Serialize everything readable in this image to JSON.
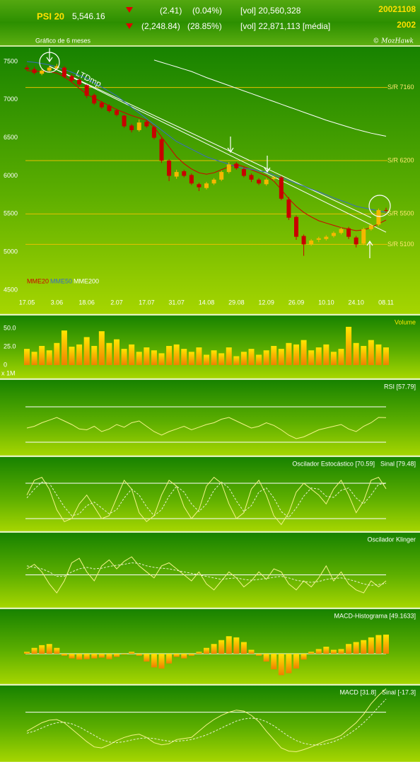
{
  "header": {
    "symbol": "PSI 20",
    "last": "5,546.16",
    "change_day": "(2.41)",
    "pct_day": "(0.04%)",
    "vol_day": "[vol] 20,560,328",
    "change_period": "(2,248.84)",
    "pct_period": "(28.85%)",
    "vol_avg": "[vol] 22,871,113 [média]",
    "date": "20021108",
    "year": "2002",
    "copyright": "© MozHawk",
    "period": "Gráfico de 6 meses"
  },
  "chart_data": [
    {
      "type": "candlestick",
      "categories": [
        "17.05",
        null,
        null,
        null,
        "3.06",
        null,
        null,
        null,
        "18.06",
        null,
        null,
        null,
        "2.07",
        null,
        null,
        null,
        "17.07",
        null,
        null,
        null,
        "31.07",
        null,
        null,
        null,
        "14.08",
        null,
        null,
        null,
        "29.08",
        null,
        null,
        null,
        "12.09",
        null,
        null,
        null,
        "26.09",
        null,
        null,
        null,
        "10.10",
        null,
        null,
        null,
        "24.10",
        null,
        null,
        null,
        "08.11"
      ],
      "open": [
        7420,
        7400,
        7340,
        7380,
        7410,
        7420,
        7310,
        7260,
        7190,
        7060,
        6960,
        6920,
        6860,
        6790,
        6660,
        6600,
        6710,
        6640,
        6480,
        6200,
        5990,
        6060,
        6010,
        5890,
        5840,
        5900,
        5950,
        6050,
        6160,
        6090,
        6010,
        5950,
        5890,
        5960,
        5980,
        5690,
        5460,
        5210,
        5100,
        5160,
        5170,
        5210,
        5250,
        5310,
        5190,
        5110,
        5300,
        5360,
        5550
      ],
      "high": [
        7450,
        7430,
        7400,
        7440,
        7470,
        7440,
        7330,
        7280,
        7200,
        7080,
        6980,
        6940,
        6880,
        6800,
        6680,
        6740,
        6730,
        6660,
        6500,
        6220,
        6080,
        6080,
        6030,
        5910,
        5920,
        5970,
        6070,
        6180,
        6180,
        6110,
        6030,
        5970,
        5970,
        6000,
        6000,
        5720,
        5480,
        5230,
        5170,
        5200,
        5220,
        5270,
        5320,
        5330,
        5210,
        5320,
        5370,
        5570,
        5580
      ],
      "low": [
        7380,
        7330,
        7320,
        7360,
        7390,
        7280,
        7230,
        7180,
        7020,
        6930,
        6880,
        6830,
        6780,
        6630,
        6570,
        6580,
        6630,
        6480,
        6170,
        5930,
        5960,
        5980,
        5880,
        5800,
        5820,
        5880,
        5930,
        6030,
        6080,
        5980,
        5920,
        5880,
        5870,
        5940,
        5680,
        5420,
        5160,
        4950,
        5080,
        5130,
        5150,
        5190,
        5230,
        5170,
        5060,
        5090,
        5280,
        5340,
        5520
      ],
      "close": [
        7400,
        7350,
        7380,
        7420,
        7440,
        7300,
        7250,
        7200,
        7050,
        6950,
        6900,
        6850,
        6800,
        6650,
        6600,
        6700,
        6650,
        6500,
        6200,
        6000,
        6050,
        6000,
        5900,
        5850,
        5900,
        5950,
        6050,
        6150,
        6100,
        6000,
        5950,
        5900,
        5950,
        5980,
        5700,
        5450,
        5200,
        5100,
        5150,
        5180,
        5200,
        5250,
        5300,
        5200,
        5100,
        5300,
        5350,
        5550,
        5546
      ],
      "up_color": "#f5b800",
      "down_color": "#c80000",
      "ylim": [
        4500,
        7500
      ],
      "yticks": [
        4500,
        5000,
        5500,
        6000,
        6500,
        7000,
        7500
      ],
      "grid": false,
      "overlays": [
        {
          "name": "MME20",
          "color": "#d00000",
          "values": [
            7380,
            7375,
            7370,
            7365,
            7350,
            7300,
            7230,
            7150,
            7070,
            7020,
            6970,
            6920,
            6870,
            6830,
            6790,
            6760,
            6730,
            6640,
            6510,
            6380,
            6250,
            6160,
            6090,
            6040,
            6020,
            6040,
            6080,
            6120,
            6150,
            6120,
            6080,
            6040,
            6000,
            5930,
            5820,
            5700,
            5600,
            5520,
            5460,
            5410,
            5380,
            5350,
            5320,
            5300,
            5280,
            5290,
            5320,
            5370,
            5420
          ]
        },
        {
          "name": "MME50",
          "color": "#3a6cc8",
          "values": [
            7500,
            7490,
            7475,
            7455,
            7430,
            7395,
            7360,
            7320,
            7280,
            7220,
            7165,
            7110,
            7050,
            6975,
            6900,
            6825,
            6750,
            6675,
            6600,
            6525,
            6450,
            6400,
            6350,
            6300,
            6250,
            6215,
            6185,
            6150,
            6120,
            6100,
            6085,
            6065,
            6050,
            6010,
            5975,
            5940,
            5900,
            5865,
            5825,
            5790,
            5750,
            5710,
            5675,
            5640,
            5600,
            5580,
            5560,
            5540,
            5520
          ]
        },
        {
          "name": "MME200",
          "color": "#ffffff",
          "values": [
            null,
            null,
            null,
            null,
            null,
            null,
            null,
            null,
            null,
            null,
            null,
            null,
            null,
            null,
            null,
            null,
            null,
            7520,
            7490,
            7460,
            7430,
            7400,
            7370,
            7330,
            7290,
            7255,
            7220,
            7185,
            7150,
            7115,
            7080,
            7045,
            7010,
            6975,
            6940,
            6905,
            6870,
            6835,
            6800,
            6765,
            6730,
            6700,
            6670,
            6640,
            6610,
            6585,
            6560,
            6540,
            6520
          ]
        }
      ],
      "levels": [
        {
          "label": "S/R 7160",
          "value": 7160
        },
        {
          "label": "S/R 6200",
          "value": 6200
        },
        {
          "label": "S/R 5500",
          "value": 5500
        },
        {
          "label": "S/R 5100",
          "value": 5100
        }
      ],
      "level_color": "#e8c000",
      "trendlines": [
        {
          "label": "LTDmp",
          "x": [
            3,
            48
          ],
          "values": [
            7440,
            5260
          ]
        },
        {
          "x": [
            3,
            46
          ],
          "values": [
            7440,
            5450
          ]
        }
      ]
    },
    {
      "type": "bar",
      "title": "Volume",
      "unit": "x 1M",
      "colors": [
        "#ffe600",
        "#f08000"
      ],
      "values": [
        22,
        18,
        26,
        20,
        30,
        47,
        25,
        28,
        38,
        26,
        46,
        30,
        35,
        22,
        28,
        18,
        24,
        20,
        16,
        26,
        28,
        22,
        18,
        24,
        14,
        20,
        16,
        24,
        12,
        18,
        22,
        14,
        20,
        26,
        22,
        30,
        28,
        34,
        20,
        24,
        28,
        18,
        22,
        52,
        30,
        26,
        34,
        28,
        24
      ],
      "ylim": [
        0,
        50
      ],
      "yticks": [
        0,
        {
          "value": 25,
          "label": "25.0"
        },
        {
          "value": 50,
          "label": "50.0"
        }
      ]
    },
    {
      "type": "line",
      "title": "RSI [57.79]",
      "ylim": [
        20,
        80
      ],
      "levels": [
        30,
        70
      ],
      "series": [
        {
          "color": "#f4f488",
          "values": [
            46,
            48,
            52,
            55,
            58,
            54,
            50,
            45,
            44,
            48,
            42,
            45,
            50,
            47,
            52,
            54,
            48,
            42,
            38,
            42,
            45,
            48,
            44,
            47,
            50,
            52,
            56,
            58,
            54,
            50,
            46,
            48,
            52,
            49,
            44,
            38,
            34,
            36,
            40,
            44,
            46,
            48,
            50,
            45,
            42,
            48,
            52,
            58,
            57.79
          ]
        }
      ]
    },
    {
      "type": "line",
      "title": "Oscilador Estocástico [70.59]",
      "signal_label": "Sinal [79.48]",
      "ylim": [
        0,
        100
      ],
      "levels": [
        20,
        80
      ],
      "series": [
        {
          "color": "#f4f488",
          "values": [
            60,
            85,
            90,
            70,
            35,
            15,
            20,
            45,
            60,
            40,
            20,
            25,
            55,
            85,
            70,
            30,
            15,
            25,
            60,
            85,
            75,
            40,
            20,
            35,
            75,
            90,
            80,
            45,
            20,
            30,
            70,
            85,
            60,
            25,
            10,
            30,
            65,
            80,
            70,
            60,
            45,
            70,
            85,
            60,
            30,
            50,
            85,
            90,
            70.59
          ]
        },
        {
          "color": "#e8f0d0",
          "dashed": true,
          "values": [
            55,
            70,
            82,
            80,
            60,
            40,
            25,
            28,
            42,
            48,
            38,
            28,
            35,
            55,
            70,
            60,
            40,
            25,
            35,
            58,
            75,
            65,
            45,
            32,
            45,
            68,
            82,
            72,
            50,
            32,
            42,
            65,
            72,
            55,
            32,
            22,
            38,
            58,
            72,
            70,
            58,
            56,
            68,
            72,
            55,
            45,
            60,
            78,
            79.48
          ]
        }
      ]
    },
    {
      "type": "line",
      "title": "Oscilador Klinger",
      "ylim": [
        -100,
        100
      ],
      "levels": [
        0
      ],
      "series": [
        {
          "color": "#f4f488",
          "values": [
            20,
            35,
            10,
            -30,
            -60,
            -20,
            40,
            55,
            10,
            -20,
            30,
            50,
            20,
            45,
            60,
            30,
            10,
            -10,
            30,
            40,
            20,
            0,
            -20,
            10,
            -30,
            -50,
            -20,
            10,
            -10,
            -40,
            -20,
            10,
            -15,
            20,
            10,
            -30,
            -50,
            -20,
            -40,
            -10,
            30,
            -20,
            10,
            -30,
            -50,
            -60,
            -20,
            -40,
            -20
          ]
        },
        {
          "color": "#e8f0d0",
          "dashed": true,
          "values": [
            30,
            25,
            20,
            10,
            -5,
            -5,
            10,
            20,
            25,
            20,
            22,
            28,
            32,
            35,
            40,
            38,
            30,
            25,
            22,
            20,
            15,
            10,
            5,
            0,
            -5,
            -10,
            -15,
            -12,
            -10,
            -15,
            -18,
            -15,
            -12,
            -8,
            -5,
            -10,
            -18,
            -22,
            -25,
            -22,
            -15,
            -12,
            -10,
            -15,
            -22,
            -30,
            -35,
            -32,
            -28
          ]
        }
      ]
    },
    {
      "type": "bar",
      "title": "MACD-Histograma [49.1633]",
      "colors": [
        "#ffe600",
        "#f08000"
      ],
      "ylim": [
        -80,
        80
      ],
      "levels": [
        0
      ],
      "values": [
        5,
        15,
        22,
        25,
        15,
        -5,
        -12,
        -15,
        -14,
        -12,
        -10,
        -14,
        -8,
        -2,
        5,
        -5,
        -20,
        -35,
        -38,
        -25,
        -8,
        -12,
        -5,
        5,
        15,
        25,
        35,
        45,
        42,
        30,
        10,
        -5,
        -20,
        -40,
        -55,
        -50,
        -38,
        -15,
        5,
        12,
        18,
        10,
        12,
        25,
        30,
        35,
        42,
        48,
        49.1633
      ]
    },
    {
      "type": "line",
      "title": "MACD [31.8]",
      "signal_label": "Sinal [-17.3]",
      "ylim": [
        -300,
        50
      ],
      "levels": [
        -80
      ],
      "series": [
        {
          "color": "#f4f488",
          "values": [
            -170,
            -150,
            -130,
            -118,
            -115,
            -130,
            -160,
            -190,
            -220,
            -245,
            -250,
            -235,
            -215,
            -200,
            -190,
            -185,
            -200,
            -225,
            -235,
            -230,
            -210,
            -205,
            -200,
            -170,
            -140,
            -115,
            -95,
            -80,
            -70,
            -75,
            -95,
            -125,
            -170,
            -210,
            -250,
            -265,
            -268,
            -258,
            -245,
            -230,
            -215,
            -205,
            -190,
            -160,
            -130,
            -90,
            -40,
            0,
            31.8
          ]
        },
        {
          "color": "#e8f0d0",
          "dashed": true,
          "values": [
            -180,
            -170,
            -155,
            -140,
            -130,
            -128,
            -135,
            -150,
            -170,
            -190,
            -210,
            -222,
            -225,
            -220,
            -212,
            -205,
            -202,
            -205,
            -212,
            -218,
            -218,
            -215,
            -210,
            -200,
            -188,
            -172,
            -155,
            -138,
            -122,
            -112,
            -108,
            -112,
            -125,
            -145,
            -170,
            -195,
            -215,
            -228,
            -235,
            -236,
            -230,
            -220,
            -205,
            -185,
            -160,
            -130,
            -95,
            -55,
            -17.3
          ]
        }
      ]
    }
  ]
}
